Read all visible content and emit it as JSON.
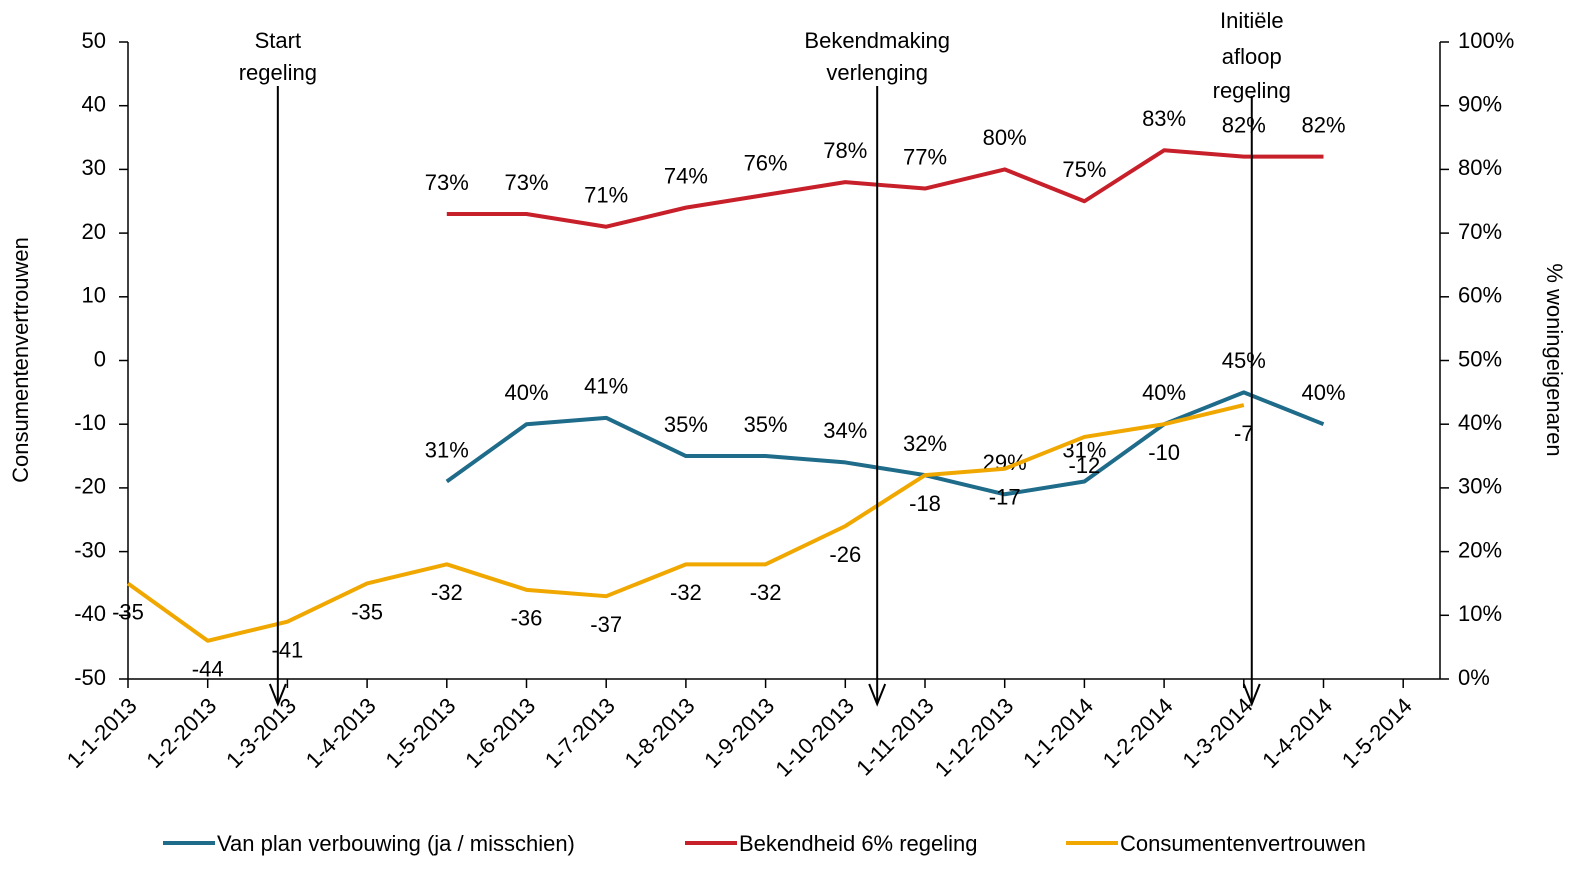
{
  "chart_data": {
    "type": "line",
    "categories": [
      "1-1-2013",
      "1-2-2013",
      "1-3-2013",
      "1-4-2013",
      "1-5-2013",
      "1-6-2013",
      "1-7-2013",
      "1-8-2013",
      "1-9-2013",
      "1-10-2013",
      "1-11-2013",
      "1-12-2013",
      "1-1-2014",
      "1-2-2014",
      "1-3-2014",
      "1-4-2014",
      "1-5-2014"
    ],
    "ylabel": "Consumentenvertrouwen",
    "y2label": "% woningeigenaren",
    "ylim": [
      -50,
      50
    ],
    "yticks": [
      -50,
      -40,
      -30,
      -20,
      -10,
      0,
      10,
      20,
      30,
      40,
      50
    ],
    "y2lim": [
      0,
      100
    ],
    "y2ticks": [
      {
        "value": 0,
        "label": "0%"
      },
      {
        "value": 10,
        "label": "10%"
      },
      {
        "value": 20,
        "label": "20%"
      },
      {
        "value": 30,
        "label": "30%"
      },
      {
        "value": 40,
        "label": "40%"
      },
      {
        "value": 50,
        "label": "50%"
      },
      {
        "value": 60,
        "label": "60%"
      },
      {
        "value": 70,
        "label": "70%"
      },
      {
        "value": 80,
        "label": "80%"
      },
      {
        "value": 90,
        "label": "90%"
      },
      {
        "value": 100,
        "label": "100%"
      }
    ],
    "series": [
      {
        "name": "Van plan verbouwing (ja / misschien)",
        "color": "#1f6b8a",
        "axis": "y2",
        "values": [
          null,
          null,
          null,
          null,
          31,
          40,
          41,
          35,
          35,
          34,
          32,
          29,
          31,
          40,
          45,
          40,
          null
        ],
        "value_labels": [
          null,
          null,
          null,
          null,
          "31%",
          "40%",
          "41%",
          "35%",
          "35%",
          "34%",
          "32%",
          "29%",
          "31%",
          "40%",
          "45%",
          "40%",
          null
        ]
      },
      {
        "name": "Bekendheid 6% regeling",
        "color": "#c8202a",
        "axis": "y2",
        "values": [
          null,
          null,
          null,
          null,
          73,
          73,
          71,
          74,
          76,
          78,
          77,
          80,
          75,
          83,
          82,
          82,
          null
        ],
        "value_labels": [
          null,
          null,
          null,
          null,
          "73%",
          "73%",
          "71%",
          "74%",
          "76%",
          "78%",
          "77%",
          "80%",
          "75%",
          "83%",
          "82%",
          "82%",
          null
        ]
      },
      {
        "name": "Consumentenvertrouwen",
        "color": "#f0a800",
        "values": [
          -35,
          -44,
          -41,
          -35,
          -32,
          -36,
          -37,
          -32,
          -32,
          -26,
          -18,
          -17,
          -12,
          -10,
          -7,
          null,
          null
        ]
      }
    ],
    "annotations": [
      {
        "lines": [
          "Start",
          "regeling"
        ]
      },
      {
        "lines": [
          "Bekendmaking",
          "verlenging"
        ]
      },
      {
        "lines": [
          "Initiële",
          "afloop",
          "regeling"
        ]
      }
    ],
    "legend": "bottom"
  }
}
